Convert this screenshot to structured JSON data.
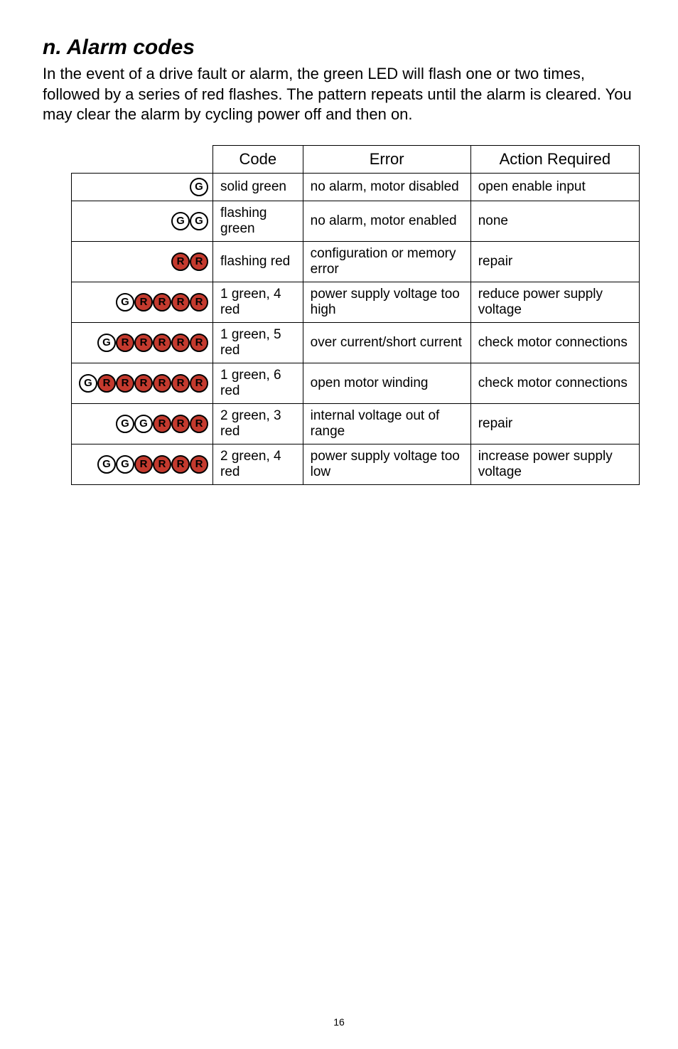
{
  "section": {
    "title": "n. Alarm codes",
    "intro": "In the event of a drive fault or alarm, the green LED will flash one or two times, followed by a series of red flashes. The pattern repeats until the alarm is cleared. You may clear the alarm by cycling power off and then on."
  },
  "table": {
    "headers": {
      "code": "Code",
      "error": "Error",
      "action": "Action Required"
    },
    "rows": [
      {
        "leds": [
          "G"
        ],
        "code": "solid green",
        "error": "no alarm, motor disabled",
        "action": "open enable input"
      },
      {
        "leds": [
          "G",
          "G"
        ],
        "code": "flashing green",
        "error": "no alarm, motor enabled",
        "action": "none"
      },
      {
        "leds": [
          "R",
          "R"
        ],
        "code": "flashing red",
        "error": "configuration or memory error",
        "action": "repair"
      },
      {
        "leds": [
          "G",
          "R",
          "R",
          "R",
          "R"
        ],
        "code": "1 green, 4 red",
        "error": "power supply voltage too high",
        "action": "reduce power supply voltage"
      },
      {
        "leds": [
          "G",
          "R",
          "R",
          "R",
          "R",
          "R"
        ],
        "code": "1 green, 5 red",
        "error": "over current/short current",
        "action": "check motor connections"
      },
      {
        "leds": [
          "G",
          "R",
          "R",
          "R",
          "R",
          "R",
          "R"
        ],
        "code": "1 green, 6 red",
        "error": "open motor winding",
        "action": "check motor connections"
      },
      {
        "leds": [
          "G",
          "G",
          "R",
          "R",
          "R"
        ],
        "code": "2 green, 3 red",
        "error": "internal voltage out of range",
        "action": "repair"
      },
      {
        "leds": [
          "G",
          "G",
          "R",
          "R",
          "R",
          "R"
        ],
        "code": "2 green, 4 red",
        "error": "power supply voltage too low",
        "action": "increase power supply voltage"
      }
    ]
  },
  "colors": {
    "led_green_bg": "#ffffff",
    "led_red_bg": "#c43a2e",
    "led_border": "#000000"
  },
  "page_number": "16"
}
